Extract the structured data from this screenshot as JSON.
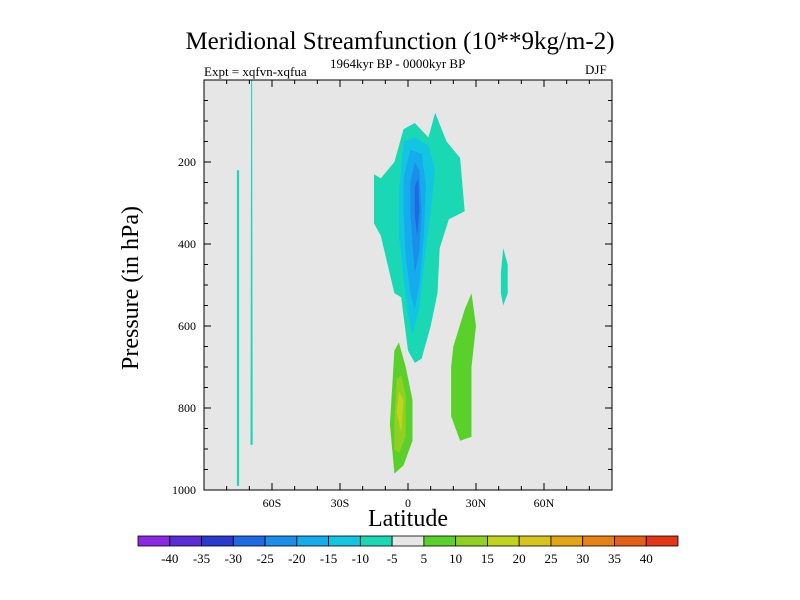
{
  "header": {
    "title": "Meridional Streamfunction (10**9kg/m-2)",
    "left_label": "Expt = xqfvn-xqfua",
    "center_label": "1964kyr BP - 0000kyr BP",
    "right_label": "DJF"
  },
  "chart_data": {
    "type": "contour",
    "title": "Meridional Streamfunction (10**9kg/m-2)",
    "xlabel": "Latitude",
    "ylabel": "Pressure (in hPa)",
    "xlim": [
      -90,
      90
    ],
    "ylim": [
      1000,
      0
    ],
    "x_ticks": [
      {
        "value": -60,
        "label": "60S"
      },
      {
        "value": -30,
        "label": "30S"
      },
      {
        "value": 0,
        "label": "0"
      },
      {
        "value": 30,
        "label": "30N"
      },
      {
        "value": 60,
        "label": "60N"
      }
    ],
    "y_ticks": [
      {
        "value": 200,
        "label": "200"
      },
      {
        "value": 400,
        "label": "400"
      },
      {
        "value": 600,
        "label": "600"
      },
      {
        "value": 800,
        "label": "800"
      },
      {
        "value": 1000,
        "label": "1000"
      }
    ],
    "background_color": "#e6e6e6",
    "colorbar": {
      "labels": [
        "-40",
        "-35",
        "-30",
        "-25",
        "-20",
        "-15",
        "-10",
        "-5",
        "5",
        "10",
        "15",
        "20",
        "25",
        "30",
        "35",
        "40"
      ],
      "colors": [
        "#8a28e6",
        "#5a2ad8",
        "#2a3ad0",
        "#1e6ae4",
        "#1a8ee8",
        "#14acec",
        "#12c6e2",
        "#1ad8b4",
        "#e6e6e6",
        "#5ad02a",
        "#90d020",
        "#c0d41e",
        "#d8c41a",
        "#e4a416",
        "#e68214",
        "#e45e16",
        "#e43616"
      ]
    },
    "regions": [
      {
        "name": "sh-narrow-strip-a",
        "level": -5,
        "points": [
          [
            -75.5,
            990
          ],
          [
            -74.5,
            990
          ],
          [
            -74.5,
            220
          ],
          [
            -75.5,
            220
          ]
        ]
      },
      {
        "name": "sh-narrow-strip-b",
        "level": -5,
        "points": [
          [
            -69.5,
            890
          ],
          [
            -68.5,
            890
          ],
          [
            -68.8,
            0
          ],
          [
            -69.2,
            0
          ]
        ]
      },
      {
        "name": "tropical-upper-broad",
        "level": -5,
        "points": [
          [
            -15,
            230
          ],
          [
            -12,
            240
          ],
          [
            -6,
            200
          ],
          [
            -2,
            120
          ],
          [
            3,
            105
          ],
          [
            9,
            140
          ],
          [
            12,
            80
          ],
          [
            17,
            150
          ],
          [
            23,
            190
          ],
          [
            25,
            320
          ],
          [
            18,
            340
          ],
          [
            14,
            410
          ],
          [
            13,
            520
          ],
          [
            10,
            600
          ],
          [
            6,
            680
          ],
          [
            3,
            690
          ],
          [
            0,
            660
          ],
          [
            -3,
            530
          ],
          [
            -6,
            520
          ],
          [
            -9,
            450
          ],
          [
            -12,
            380
          ],
          [
            -15,
            350
          ]
        ]
      },
      {
        "name": "tropical-upper-core-10",
        "level": -10,
        "points": [
          [
            -4,
            280
          ],
          [
            -2,
            150
          ],
          [
            3,
            140
          ],
          [
            9,
            160
          ],
          [
            12,
            220
          ],
          [
            10,
            320
          ],
          [
            7,
            450
          ],
          [
            5,
            560
          ],
          [
            2,
            620
          ],
          [
            0,
            570
          ],
          [
            -2,
            480
          ],
          [
            -4,
            380
          ]
        ]
      },
      {
        "name": "tropical-upper-core-15",
        "level": -15,
        "points": [
          [
            -2,
            240
          ],
          [
            1,
            170
          ],
          [
            6,
            180
          ],
          [
            8,
            260
          ],
          [
            7,
            380
          ],
          [
            5,
            500
          ],
          [
            3,
            560
          ],
          [
            1,
            520
          ],
          [
            -1,
            430
          ],
          [
            -2,
            320
          ]
        ]
      },
      {
        "name": "tropical-upper-core-20",
        "level": -20,
        "points": [
          [
            1,
            250
          ],
          [
            3,
            200
          ],
          [
            5,
            220
          ],
          [
            6,
            320
          ],
          [
            5,
            420
          ],
          [
            3,
            470
          ],
          [
            2,
            400
          ],
          [
            1,
            320
          ]
        ]
      },
      {
        "name": "tropical-upper-core-25",
        "level": -25,
        "points": [
          [
            3,
            260
          ],
          [
            4.5,
            240
          ],
          [
            5,
            320
          ],
          [
            4,
            380
          ],
          [
            3,
            330
          ]
        ]
      },
      {
        "name": "nh-small-patch",
        "level": -5,
        "points": [
          [
            41,
            470
          ],
          [
            42,
            410
          ],
          [
            44,
            450
          ],
          [
            44,
            520
          ],
          [
            42,
            550
          ],
          [
            41,
            520
          ]
        ]
      },
      {
        "name": "sh-lower-positive-5",
        "level": 5,
        "points": [
          [
            -8,
            840
          ],
          [
            -6,
            660
          ],
          [
            -4,
            640
          ],
          [
            -1,
            700
          ],
          [
            2,
            780
          ],
          [
            2,
            880
          ],
          [
            -2,
            940
          ],
          [
            -6,
            960
          ]
        ]
      },
      {
        "name": "sh-lower-positive-10",
        "level": 10,
        "points": [
          [
            -6,
            830
          ],
          [
            -5,
            730
          ],
          [
            -3,
            720
          ],
          [
            -1,
            770
          ],
          [
            -1,
            870
          ],
          [
            -4,
            910
          ],
          [
            -6,
            900
          ]
        ]
      },
      {
        "name": "sh-lower-positive-15",
        "level": 15,
        "points": [
          [
            -5,
            810
          ],
          [
            -4,
            760
          ],
          [
            -2,
            780
          ],
          [
            -3,
            860
          ]
        ]
      },
      {
        "name": "nh-lower-positive",
        "level": 5,
        "points": [
          [
            19,
            700
          ],
          [
            20,
            650
          ],
          [
            25,
            560
          ],
          [
            28,
            520
          ],
          [
            30,
            600
          ],
          [
            28,
            700
          ],
          [
            28,
            870
          ],
          [
            23,
            880
          ],
          [
            19,
            820
          ]
        ]
      }
    ]
  }
}
